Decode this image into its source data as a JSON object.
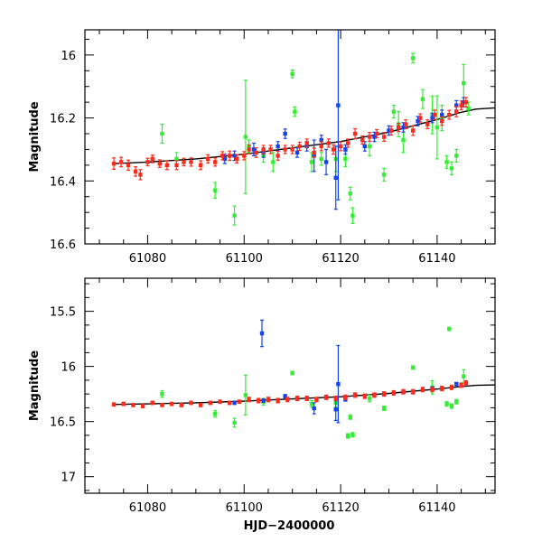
{
  "chart_data": [
    {
      "type": "scatter",
      "panel": "top",
      "xlabel": "",
      "ylabel": "Magnitude",
      "xlim": [
        61067,
        61152
      ],
      "ylim": [
        16.6,
        15.92
      ],
      "y_inverted": true,
      "x_ticks": [
        61080,
        61100,
        61120,
        61140
      ],
      "x_tick_labels": [
        "61080",
        "61100",
        "61120",
        "61140"
      ],
      "y_ticks": [
        16.0,
        16.2,
        16.4,
        16.6
      ],
      "y_tick_labels": [
        "16",
        "16.2",
        "16.4",
        "16.6"
      ],
      "series_colors": {
        "red": "#ff2a1a",
        "green": "#33ee33",
        "blue": "#1144ee",
        "model": "#000000"
      },
      "model_curve": {
        "x": [
          61073,
          61080,
          61090,
          61100,
          61110,
          61120,
          61130,
          61140,
          61145,
          61148,
          61152
        ],
        "y": [
          16.345,
          16.34,
          16.33,
          16.315,
          16.295,
          16.275,
          16.245,
          16.205,
          16.182,
          16.172,
          16.168
        ]
      },
      "series": [
        {
          "name": "red",
          "color": "#ff2a1a",
          "points": [
            [
              61073,
              16.345,
              0.018
            ],
            [
              61074.5,
              16.34,
              0.015
            ],
            [
              61076,
              16.35,
              0.016
            ],
            [
              61077.5,
              16.37,
              0.015
            ],
            [
              61078.5,
              16.38,
              0.016
            ],
            [
              61080,
              16.34,
              0.012
            ],
            [
              61081,
              16.33,
              0.012
            ],
            [
              61082.5,
              16.345,
              0.012
            ],
            [
              61084,
              16.35,
              0.014
            ],
            [
              61086,
              16.35,
              0.014
            ],
            [
              61087.5,
              16.34,
              0.012
            ],
            [
              61089,
              16.34,
              0.013
            ],
            [
              61091,
              16.35,
              0.014
            ],
            [
              61092.5,
              16.33,
              0.013
            ],
            [
              61094,
              16.34,
              0.013
            ],
            [
              61095.5,
              16.32,
              0.013
            ],
            [
              61097,
              16.32,
              0.015
            ],
            [
              61098.5,
              16.33,
              0.013
            ],
            [
              61100,
              16.32,
              0.013
            ],
            [
              61101,
              16.3,
              0.014
            ],
            [
              61102.5,
              16.31,
              0.015
            ],
            [
              61104,
              16.3,
              0.013
            ],
            [
              61105.5,
              16.3,
              0.013
            ],
            [
              61107,
              16.32,
              0.014
            ],
            [
              61108.5,
              16.3,
              0.013
            ],
            [
              61110,
              16.3,
              0.013
            ],
            [
              61111.5,
              16.29,
              0.013
            ],
            [
              61113,
              16.28,
              0.013
            ],
            [
              61114.5,
              16.31,
              0.014
            ],
            [
              61116,
              16.29,
              0.014
            ],
            [
              61117.5,
              16.28,
              0.013
            ],
            [
              61118.5,
              16.3,
              0.015
            ],
            [
              61120,
              16.29,
              0.014
            ],
            [
              61121.5,
              16.28,
              0.013
            ],
            [
              61123,
              16.25,
              0.016
            ],
            [
              61124.5,
              16.27,
              0.013
            ],
            [
              61126,
              16.26,
              0.014
            ],
            [
              61127.5,
              16.25,
              0.013
            ],
            [
              61129,
              16.26,
              0.014
            ],
            [
              61130.5,
              16.24,
              0.014
            ],
            [
              61132,
              16.23,
              0.013
            ],
            [
              61133.5,
              16.22,
              0.014
            ],
            [
              61135,
              16.24,
              0.015
            ],
            [
              61136.5,
              16.2,
              0.013
            ],
            [
              61138,
              16.22,
              0.014
            ],
            [
              61139.5,
              16.19,
              0.015
            ],
            [
              61141,
              16.21,
              0.013
            ],
            [
              61142.5,
              16.19,
              0.014
            ],
            [
              61144,
              16.18,
              0.016
            ],
            [
              61145,
              16.16,
              0.014
            ],
            [
              61146,
              16.15,
              0.015
            ]
          ]
        },
        {
          "name": "green",
          "color": "#33ee33",
          "points": [
            [
              61083,
              16.25,
              0.03
            ],
            [
              61086,
              16.33,
              0.02
            ],
            [
              61094,
              16.43,
              0.025
            ],
            [
              61098,
              16.51,
              0.03
            ],
            [
              61100.3,
              16.26,
              0.18
            ],
            [
              61101,
              16.29,
              0.02
            ],
            [
              61104,
              16.32,
              0.02
            ],
            [
              61106,
              16.34,
              0.03
            ],
            [
              61110,
              16.06,
              0.012
            ],
            [
              61110.5,
              16.18,
              0.015
            ],
            [
              61114,
              16.34,
              0.03
            ],
            [
              61116,
              16.33,
              0.02
            ],
            [
              61119,
              16.33,
              0.04
            ],
            [
              61121,
              16.33,
              0.025
            ],
            [
              61122,
              16.44,
              0.02
            ],
            [
              61122.5,
              16.51,
              0.025
            ],
            [
              61126,
              16.29,
              0.03
            ],
            [
              61129,
              16.38,
              0.02
            ],
            [
              61131,
              16.18,
              0.02
            ],
            [
              61132,
              16.22,
              0.04
            ],
            [
              61133,
              16.27,
              0.04
            ],
            [
              61135,
              16.01,
              0.015
            ],
            [
              61137,
              16.14,
              0.03
            ],
            [
              61139,
              16.19,
              0.06
            ],
            [
              61140,
              16.23,
              0.1
            ],
            [
              61141,
              16.2,
              0.04
            ],
            [
              61142,
              16.34,
              0.02
            ],
            [
              61143,
              16.36,
              0.02
            ],
            [
              61144,
              16.32,
              0.02
            ],
            [
              61145.5,
              16.09,
              0.06
            ],
            [
              61146.5,
              16.17,
              0.02
            ]
          ]
        },
        {
          "name": "blue",
          "color": "#1144ee",
          "points": [
            [
              61096,
              16.33,
              0.015
            ],
            [
              61098,
              16.32,
              0.015
            ],
            [
              61102,
              16.3,
              0.02
            ],
            [
              61104,
              16.31,
              0.015
            ],
            [
              61107,
              16.29,
              0.015
            ],
            [
              61108.5,
              16.25,
              0.015
            ],
            [
              61111,
              16.31,
              0.015
            ],
            [
              61113,
              16.29,
              0.015
            ],
            [
              61114.5,
              16.32,
              0.05
            ],
            [
              61116,
              16.27,
              0.015
            ],
            [
              61117,
              16.34,
              0.04
            ],
            [
              61119,
              16.39,
              0.1
            ],
            [
              61119.5,
              16.16,
              0.3
            ],
            [
              61121,
              16.3,
              0.015
            ],
            [
              61125,
              16.29,
              0.015
            ],
            [
              61127,
              16.26,
              0.015
            ],
            [
              61130,
              16.24,
              0.015
            ],
            [
              61133,
              16.23,
              0.015
            ],
            [
              61136,
              16.21,
              0.015
            ],
            [
              61139,
              16.2,
              0.015
            ],
            [
              61141,
              16.19,
              0.015
            ],
            [
              61144,
              16.16,
              0.015
            ],
            [
              61145.5,
              16.15,
              0.015
            ]
          ]
        }
      ]
    },
    {
      "type": "scatter",
      "panel": "bottom",
      "xlabel": "HJD−2400000",
      "ylabel": "Magnitude",
      "xlim": [
        61067,
        61152
      ],
      "ylim": [
        17.15,
        15.2
      ],
      "y_inverted": true,
      "x_ticks": [
        61080,
        61100,
        61120,
        61140
      ],
      "x_tick_labels": [
        "61080",
        "61100",
        "61120",
        "61140"
      ],
      "y_ticks": [
        15.5,
        16.0,
        16.5,
        17.0
      ],
      "y_tick_labels": [
        "15.5",
        "16",
        "16.5",
        "17"
      ],
      "series_colors": {
        "red": "#ff2a1a",
        "green": "#33ee33",
        "blue": "#1144ee",
        "model": "#000000"
      },
      "model_curve": {
        "x": [
          61073,
          61080,
          61090,
          61100,
          61110,
          61120,
          61130,
          61140,
          61145,
          61148,
          61152
        ],
        "y": [
          16.345,
          16.34,
          16.33,
          16.315,
          16.295,
          16.275,
          16.245,
          16.205,
          16.182,
          16.172,
          16.168
        ]
      },
      "series": [
        {
          "name": "red",
          "color": "#ff2a1a",
          "points": [
            [
              61073,
              16.345,
              0.015
            ],
            [
              61075,
              16.34,
              0.015
            ],
            [
              61077,
              16.35,
              0.015
            ],
            [
              61079,
              16.36,
              0.015
            ],
            [
              61081,
              16.33,
              0.015
            ],
            [
              61083,
              16.35,
              0.015
            ],
            [
              61085,
              16.34,
              0.015
            ],
            [
              61087,
              16.35,
              0.015
            ],
            [
              61089,
              16.33,
              0.015
            ],
            [
              61091,
              16.35,
              0.015
            ],
            [
              61093,
              16.33,
              0.015
            ],
            [
              61095,
              16.32,
              0.015
            ],
            [
              61097,
              16.33,
              0.015
            ],
            [
              61099,
              16.32,
              0.015
            ],
            [
              61101,
              16.3,
              0.02
            ],
            [
              61103,
              16.31,
              0.02
            ],
            [
              61105,
              16.3,
              0.02
            ],
            [
              61107,
              16.31,
              0.02
            ],
            [
              61109,
              16.3,
              0.02
            ],
            [
              61111,
              16.29,
              0.02
            ],
            [
              61113,
              16.29,
              0.02
            ],
            [
              61115,
              16.3,
              0.02
            ],
            [
              61117,
              16.28,
              0.02
            ],
            [
              61119,
              16.29,
              0.02
            ],
            [
              61121,
              16.28,
              0.02
            ],
            [
              61123,
              16.26,
              0.02
            ],
            [
              61125,
              16.27,
              0.02
            ],
            [
              61127,
              16.26,
              0.02
            ],
            [
              61129,
              16.25,
              0.02
            ],
            [
              61131,
              16.24,
              0.02
            ],
            [
              61133,
              16.23,
              0.02
            ],
            [
              61135,
              16.23,
              0.02
            ],
            [
              61137,
              16.21,
              0.02
            ],
            [
              61139,
              16.21,
              0.02
            ],
            [
              61141,
              16.2,
              0.02
            ],
            [
              61143,
              16.19,
              0.02
            ],
            [
              61145,
              16.17,
              0.02
            ],
            [
              61146,
              16.15,
              0.02
            ]
          ]
        },
        {
          "name": "green",
          "color": "#33ee33",
          "points": [
            [
              61083,
              16.25,
              0.03
            ],
            [
              61094,
              16.43,
              0.03
            ],
            [
              61098,
              16.51,
              0.04
            ],
            [
              61100.3,
              16.26,
              0.18
            ],
            [
              61104,
              16.32,
              0.03
            ],
            [
              61110,
              16.06,
              0.015
            ],
            [
              61114,
              16.34,
              0.03
            ],
            [
              61119,
              16.33,
              0.04
            ],
            [
              61121.5,
              16.63,
              0.02
            ],
            [
              61122.5,
              16.62,
              0.02
            ],
            [
              61122,
              16.46,
              0.02
            ],
            [
              61126,
              16.29,
              0.03
            ],
            [
              61129,
              16.38,
              0.02
            ],
            [
              61135,
              16.01,
              0.015
            ],
            [
              61139,
              16.19,
              0.06
            ],
            [
              61142,
              16.34,
              0.02
            ],
            [
              61142.5,
              15.66,
              0.015
            ],
            [
              61143,
              16.36,
              0.02
            ],
            [
              61144,
              16.32,
              0.02
            ],
            [
              61145.5,
              16.09,
              0.06
            ]
          ]
        },
        {
          "name": "blue",
          "color": "#1144ee",
          "points": [
            [
              61098,
              16.33,
              0.015
            ],
            [
              61103.7,
              15.7,
              0.12
            ],
            [
              61104,
              16.31,
              0.015
            ],
            [
              61108.5,
              16.27,
              0.015
            ],
            [
              61113,
              16.29,
              0.015
            ],
            [
              61114.5,
              16.38,
              0.05
            ],
            [
              61119,
              16.39,
              0.1
            ],
            [
              61119.5,
              16.16,
              0.35
            ],
            [
              61121,
              16.3,
              0.015
            ],
            [
              61127,
              16.26,
              0.015
            ],
            [
              61133,
              16.23,
              0.015
            ],
            [
              61139,
              16.2,
              0.015
            ],
            [
              61144,
              16.16,
              0.015
            ]
          ]
        }
      ]
    }
  ]
}
